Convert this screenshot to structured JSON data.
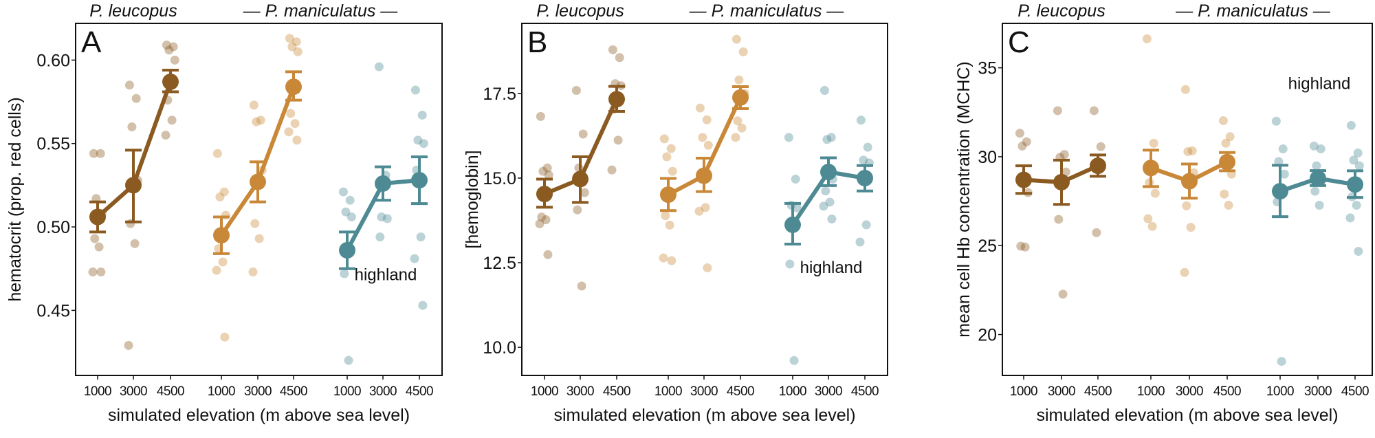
{
  "colors": {
    "leucopus": "#8A5A21",
    "maniculatus_lowland": "#C98838",
    "maniculatus_highland": "#4D8A93"
  },
  "chart_data": [
    {
      "type": "scatter",
      "panel_label": "A",
      "header_left": "P. leucopus",
      "header_right": "— P. maniculatus —",
      "ylabel": "hematocrit (prop. red cells)",
      "xlabel": "simulated elevation (m above sea level)",
      "annotation": {
        "text": "highland",
        "group": 2,
        "y": 0.468
      },
      "x_categories": [
        "1000",
        "3000",
        "4500"
      ],
      "yticks": [
        0.45,
        0.5,
        0.55,
        0.6
      ],
      "ytick_labels": [
        "0.45",
        "0.50",
        "0.55",
        "0.60"
      ],
      "ylim": [
        0.411,
        0.622
      ],
      "groups": [
        {
          "color": "#8A5A21",
          "means": [
            0.506,
            0.525,
            0.587
          ],
          "err_low": [
            0.497,
            0.503,
            0.581
          ],
          "err_high": [
            0.515,
            0.546,
            0.594
          ],
          "points": [
            [
              0.544,
              0.544,
              0.517,
              0.508,
              0.493,
              0.488,
              0.473,
              0.473
            ],
            [
              0.585,
              0.577,
              0.56,
              0.528,
              0.502,
              0.49,
              0.429
            ],
            [
              0.609,
              0.608,
              0.606,
              0.6,
              0.576,
              0.564,
              0.555
            ]
          ]
        },
        {
          "color": "#C98838",
          "means": [
            0.495,
            0.527,
            0.584
          ],
          "err_low": [
            0.484,
            0.515,
            0.576
          ],
          "err_high": [
            0.506,
            0.539,
            0.593
          ],
          "points": [
            [
              0.544,
              0.521,
              0.518,
              0.507,
              0.487,
              0.479,
              0.474,
              0.434
            ],
            [
              0.573,
              0.564,
              0.563,
              0.534,
              0.502,
              0.493,
              0.473
            ],
            [
              0.613,
              0.611,
              0.608,
              0.605,
              0.568,
              0.562,
              0.557,
              0.552
            ]
          ]
        },
        {
          "color": "#4D8A93",
          "means": [
            0.486,
            0.526,
            0.528
          ],
          "err_low": [
            0.475,
            0.516,
            0.514
          ],
          "err_high": [
            0.497,
            0.536,
            0.542
          ],
          "points": [
            [
              0.521,
              0.516,
              0.509,
              0.506,
              0.472,
              0.42
            ],
            [
              0.596,
              0.531,
              0.506,
              0.505,
              0.494
            ],
            [
              0.582,
              0.567,
              0.552,
              0.55,
              0.534,
              0.494,
              0.481,
              0.453
            ]
          ]
        }
      ]
    },
    {
      "type": "scatter",
      "panel_label": "B",
      "header_left": "P. leucopus",
      "header_right": "— P. maniculatus —",
      "ylabel": "[hemoglobin]",
      "xlabel": "simulated elevation (m above sea level)",
      "annotation": {
        "text": "highland",
        "group": 2,
        "y": 12.2
      },
      "x_categories": [
        "1000",
        "3000",
        "4500"
      ],
      "yticks": [
        10.0,
        12.5,
        15.0,
        17.5
      ],
      "ytick_labels": [
        "10.0",
        "12.5",
        "15.0",
        "17.5"
      ],
      "ylim": [
        9.17,
        19.57
      ],
      "groups": [
        {
          "color": "#8A5A21",
          "means": [
            14.53,
            14.97,
            17.33
          ],
          "err_low": [
            14.14,
            14.28,
            16.97
          ],
          "err_high": [
            14.97,
            15.63,
            17.71
          ],
          "points": [
            [
              16.82,
              15.3,
              15.2,
              15.09,
              13.85,
              13.77,
              13.65,
              12.74
            ],
            [
              17.59,
              16.3,
              15.3,
              14.57,
              14.06,
              11.81
            ],
            [
              18.79,
              18.56,
              17.79,
              17.73,
              17.03,
              16.12,
              15.24
            ]
          ]
        },
        {
          "color": "#C98838",
          "means": [
            14.51,
            15.07,
            17.38
          ],
          "err_low": [
            14.04,
            14.6,
            17.05
          ],
          "err_high": [
            14.99,
            15.59,
            17.7
          ],
          "points": [
            [
              16.16,
              15.87,
              15.63,
              15.2,
              13.89,
              13.61,
              12.64,
              12.56
            ],
            [
              17.07,
              16.72,
              16.2,
              15.97,
              14.97,
              14.13,
              14.02,
              12.35
            ],
            [
              19.1,
              18.73,
              17.9,
              17.5,
              16.69,
              16.48,
              16.2
            ]
          ]
        },
        {
          "color": "#4D8A93",
          "means": [
            13.62,
            15.18,
            15.0
          ],
          "err_low": [
            13.05,
            14.78,
            14.62
          ],
          "err_high": [
            14.25,
            15.6,
            15.37
          ],
          "points": [
            [
              16.2,
              14.97,
              14.2,
              14.12,
              12.46,
              9.61
            ],
            [
              17.59,
              16.2,
              16.14,
              14.97,
              14.62,
              14.29,
              14.17,
              13.79
            ],
            [
              16.71,
              15.91,
              15.53,
              15.45,
              14.97,
              13.62,
              13.11
            ]
          ]
        }
      ]
    },
    {
      "type": "scatter",
      "panel_label": "C",
      "header_left": "P. leucopus",
      "header_right": "— P. maniculatus —",
      "ylabel": "mean cell Hb concentration (MCHC)",
      "xlabel": "simulated elevation (m above sea level)",
      "annotation": {
        "text": "highland",
        "group": 2,
        "y": 33.8
      },
      "x_categories": [
        "1000",
        "3000",
        "4500"
      ],
      "yticks": [
        20,
        25,
        30,
        35
      ],
      "ytick_labels": [
        "20",
        "25",
        "30",
        "35"
      ],
      "ylim": [
        17.7,
        37.5
      ],
      "groups": [
        {
          "color": "#8A5A21",
          "means": [
            28.7,
            28.57,
            29.49
          ],
          "err_low": [
            27.94,
            27.32,
            28.9
          ],
          "err_high": [
            29.49,
            29.81,
            30.1
          ],
          "points": [
            [
              31.32,
              30.84,
              30.6,
              27.98,
              24.97,
              24.92
            ],
            [
              32.59,
              30.13,
              29.97,
              29.14,
              26.48,
              22.27
            ],
            [
              32.59,
              30.57,
              25.73
            ]
          ]
        },
        {
          "color": "#C98838",
          "means": [
            29.37,
            28.62,
            29.7
          ],
          "err_low": [
            28.32,
            27.67,
            29.21
          ],
          "err_high": [
            30.37,
            29.59,
            30.24
          ],
          "points": [
            [
              36.63,
              30.76,
              28.54,
              27.94,
              26.51,
              26.08
            ],
            [
              33.78,
              30.33,
              30.29,
              29.1,
              27.24,
              26.03,
              23.49
            ],
            [
              32.03,
              31.13,
              30.76,
              29.02,
              27.9,
              27.27
            ]
          ]
        },
        {
          "color": "#4D8A93",
          "means": [
            28.06,
            28.78,
            28.44
          ],
          "err_low": [
            26.63,
            28.38,
            27.71
          ],
          "err_high": [
            29.52,
            29.22,
            29.21
          ],
          "points": [
            [
              32.0,
              30.44,
              29.73,
              29.02,
              27.46,
              18.49
            ],
            [
              30.6,
              30.44,
              29.49,
              28.7,
              28.06,
              27.27
            ],
            [
              31.76,
              30.21,
              29.81,
              29.49,
              27.75,
              27.27,
              26.56,
              24.68
            ]
          ]
        }
      ]
    }
  ]
}
